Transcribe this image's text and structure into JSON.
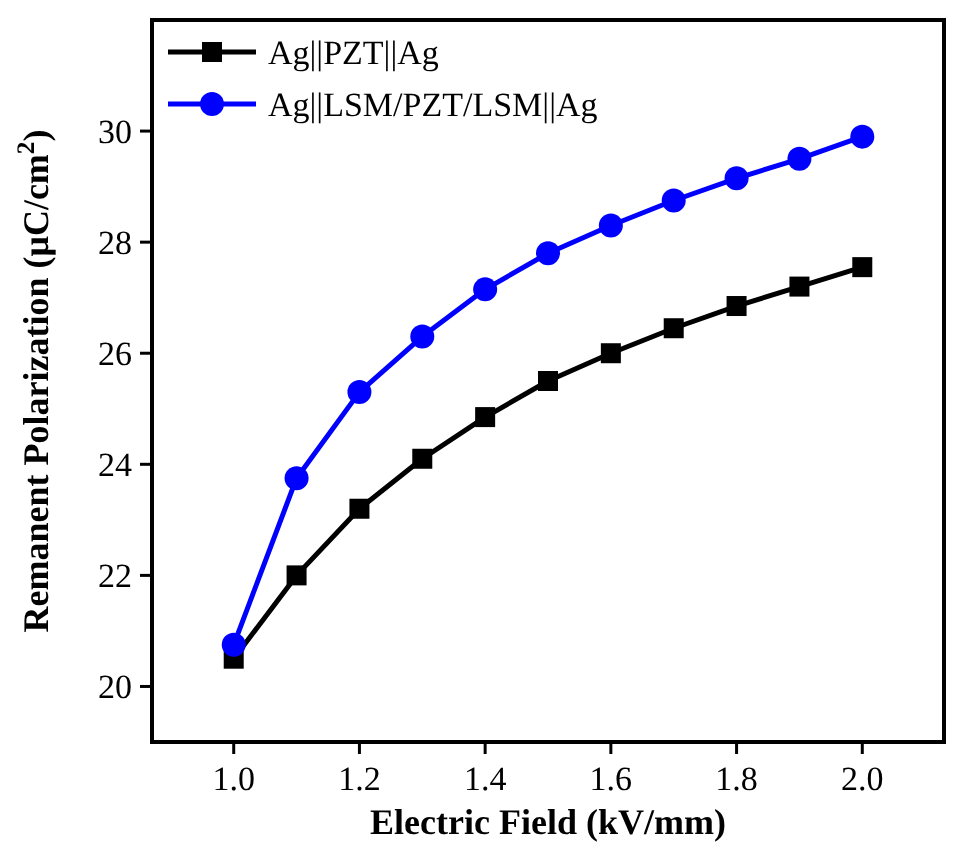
{
  "chart_data": {
    "type": "line",
    "xlabel": "Electric Field (kV/mm)",
    "ylabel": "Remanent Polarization (μC/cm$^{2}$)",
    "x": [
      1.0,
      1.1,
      1.2,
      1.3,
      1.4,
      1.5,
      1.6,
      1.7,
      1.8,
      1.9,
      2.0
    ],
    "series": [
      {
        "name": "Ag||PZT||Ag",
        "color": "#000000",
        "marker": "square",
        "values": [
          20.5,
          22.0,
          23.2,
          24.1,
          24.85,
          25.5,
          26.0,
          26.45,
          26.85,
          27.2,
          27.55
        ]
      },
      {
        "name": "Ag||LSM/PZT/LSM||Ag",
        "color": "#0000ff",
        "marker": "circle",
        "values": [
          20.75,
          23.75,
          25.3,
          26.3,
          27.15,
          27.8,
          28.3,
          28.75,
          29.15,
          29.5,
          29.9
        ]
      }
    ],
    "xlim": [
      0.87,
      2.13
    ],
    "xticks": [
      {
        "value": 1.0,
        "label": "1.0"
      },
      {
        "value": 1.2,
        "label": "1.2"
      },
      {
        "value": 1.4,
        "label": "1.4"
      },
      {
        "value": 1.6,
        "label": "1.6"
      },
      {
        "value": 1.8,
        "label": "1.8"
      },
      {
        "value": 2.0,
        "label": "2.0"
      }
    ],
    "ylim": [
      19,
      32
    ],
    "yticks": [
      20,
      22,
      24,
      26,
      28,
      30
    ],
    "legend": "top left",
    "grid": false,
    "line_style": "solid"
  }
}
